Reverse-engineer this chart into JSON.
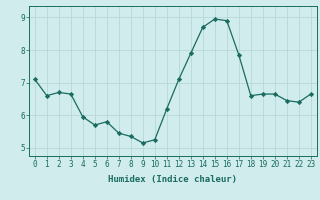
{
  "x": [
    0,
    1,
    2,
    3,
    4,
    5,
    6,
    7,
    8,
    9,
    10,
    11,
    12,
    13,
    14,
    15,
    16,
    17,
    18,
    19,
    20,
    21,
    22,
    23
  ],
  "y": [
    7.1,
    6.6,
    6.7,
    6.65,
    5.95,
    5.7,
    5.8,
    5.45,
    5.35,
    5.15,
    5.25,
    6.2,
    7.1,
    7.9,
    8.7,
    8.95,
    8.9,
    7.85,
    6.6,
    6.65,
    6.65,
    6.45,
    6.4,
    6.65
  ],
  "line_color": "#1a6b60",
  "marker": "D",
  "marker_size": 2.2,
  "bg_color": "#d0ecec",
  "grid_color": "#b8d8d8",
  "xlabel": "Humidex (Indice chaleur)",
  "ylim": [
    4.75,
    9.35
  ],
  "xlim": [
    -0.5,
    23.5
  ],
  "yticks": [
    5,
    6,
    7,
    8,
    9
  ],
  "xticks": [
    0,
    1,
    2,
    3,
    4,
    5,
    6,
    7,
    8,
    9,
    10,
    11,
    12,
    13,
    14,
    15,
    16,
    17,
    18,
    19,
    20,
    21,
    22,
    23
  ],
  "tick_color": "#1a6b60",
  "label_fontsize": 6.5,
  "tick_fontsize": 5.5,
  "linewidth": 0.9
}
